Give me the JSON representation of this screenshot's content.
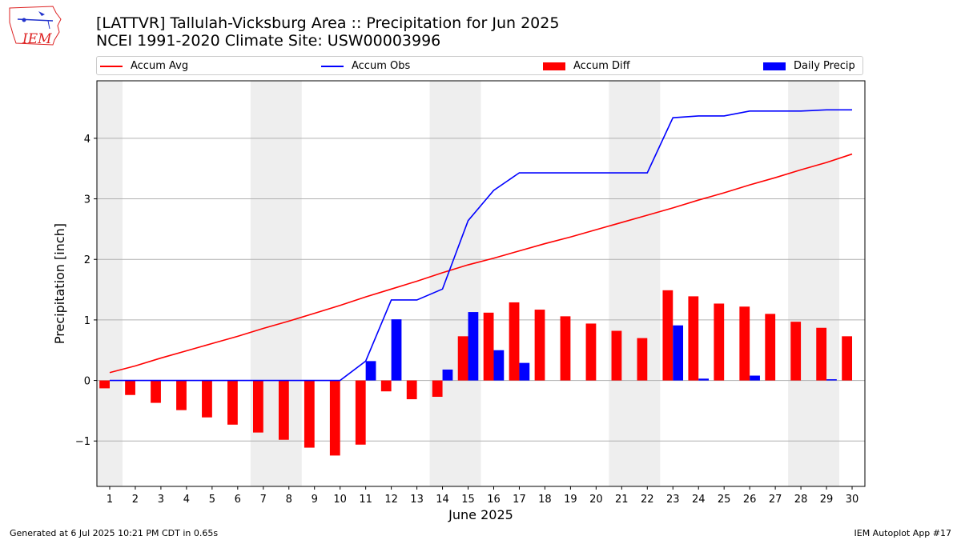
{
  "header": {
    "title_line1": "[LATTVR] Tallulah-Vicksburg Area :: Precipitation for Jun 2025",
    "title_line2": "NCEI 1991-2020 Climate Site: USW00003996",
    "logo_text": "IEM"
  },
  "footer": {
    "generated": "Generated at 6 Jul 2025 10:21 PM CDT in 0.65s",
    "app": "IEM Autoplot App #17"
  },
  "colors": {
    "avg": "#ff0000",
    "obs": "#0000ff",
    "diff": "#ff0000",
    "daily": "#0000ff",
    "weekend_band": "#eeeeee",
    "grid": "#b0b0b0"
  },
  "chart_data": {
    "type": "bar",
    "title": "[LATTVR] Tallulah-Vicksburg Area :: Precipitation for Jun 2025",
    "subtitle": "NCEI 1991-2020 Climate Site: USW00003996",
    "xlabel": "June 2025",
    "ylabel": "Precipitation [inch]",
    "xlim": [
      0.5,
      30.5
    ],
    "ylim": [
      -1.75,
      4.95
    ],
    "yticks": [
      -1,
      0,
      1,
      2,
      3,
      4
    ],
    "ytick_labels": [
      "−1",
      "0",
      "1",
      "2",
      "3",
      "4"
    ],
    "x": [
      1,
      2,
      3,
      4,
      5,
      6,
      7,
      8,
      9,
      10,
      11,
      12,
      13,
      14,
      15,
      16,
      17,
      18,
      19,
      20,
      21,
      22,
      23,
      24,
      25,
      26,
      27,
      28,
      29,
      30
    ],
    "weekend_bands": [
      [
        0.5,
        1.5
      ],
      [
        6.5,
        8.5
      ],
      [
        13.5,
        15.5
      ],
      [
        20.5,
        22.5
      ],
      [
        27.5,
        29.5
      ]
    ],
    "grid": "y",
    "legend_placement": "top",
    "series": [
      {
        "name": "Accum Avg",
        "kind": "line",
        "values": [
          0.13,
          0.24,
          0.37,
          0.49,
          0.61,
          0.73,
          0.86,
          0.98,
          1.11,
          1.24,
          1.38,
          1.51,
          1.64,
          1.78,
          1.91,
          2.02,
          2.14,
          2.26,
          2.37,
          2.49,
          2.61,
          2.73,
          2.85,
          2.98,
          3.1,
          3.23,
          3.35,
          3.48,
          3.6,
          3.74
        ]
      },
      {
        "name": "Accum Obs",
        "kind": "line",
        "values": [
          0,
          0,
          0,
          0,
          0,
          0,
          0,
          0,
          0,
          0,
          0.32,
          1.33,
          1.33,
          1.51,
          2.64,
          3.14,
          3.43,
          3.43,
          3.43,
          3.43,
          3.43,
          3.43,
          4.34,
          4.37,
          4.37,
          4.45,
          4.45,
          4.45,
          4.47,
          4.47
        ]
      },
      {
        "name": "Accum Diff",
        "kind": "bar",
        "values": [
          -0.13,
          -0.24,
          -0.37,
          -0.49,
          -0.61,
          -0.73,
          -0.86,
          -0.98,
          -1.11,
          -1.24,
          -1.06,
          -0.18,
          -0.31,
          -0.27,
          0.73,
          1.12,
          1.29,
          1.17,
          1.06,
          0.94,
          0.82,
          0.7,
          1.49,
          1.39,
          1.27,
          1.22,
          1.1,
          0.97,
          0.87,
          0.73
        ]
      },
      {
        "name": "Daily Precip",
        "kind": "bar",
        "values": [
          0,
          0,
          0,
          0,
          0,
          0,
          0,
          0,
          0,
          0,
          0.32,
          1.01,
          0,
          0.18,
          1.13,
          0.5,
          0.29,
          0,
          0,
          0,
          0,
          0,
          0.91,
          0.03,
          0,
          0.08,
          0,
          0,
          0.02,
          0
        ]
      }
    ]
  }
}
